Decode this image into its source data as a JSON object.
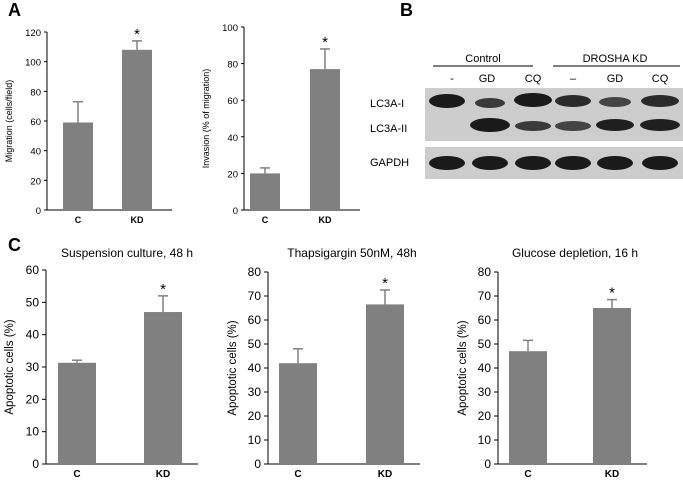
{
  "panels": {
    "a": "A",
    "b": "B",
    "c": "C"
  },
  "chart_data": [
    {
      "type": "bar",
      "categories": [
        "C",
        "KD"
      ],
      "values": [
        59,
        108
      ],
      "errors": [
        14,
        6
      ],
      "significance": [
        "",
        "*"
      ],
      "title": "",
      "xlabel": "",
      "ylabel": "Migration (cells/field)",
      "ylim": [
        0,
        120
      ],
      "yticks": [
        0,
        20,
        40,
        60,
        80,
        100,
        120
      ]
    },
    {
      "type": "bar",
      "categories": [
        "C",
        "KD"
      ],
      "values": [
        20,
        77
      ],
      "errors": [
        3,
        11
      ],
      "significance": [
        "",
        "*"
      ],
      "title": "",
      "xlabel": "",
      "ylabel": "Invasion (% of migration)",
      "ylim": [
        0,
        100
      ],
      "yticks": [
        0,
        20,
        40,
        60,
        80,
        100
      ]
    },
    {
      "type": "bar",
      "categories": [
        "C",
        "KD"
      ],
      "values": [
        31.3,
        47
      ],
      "errors": [
        0.8,
        5
      ],
      "significance": [
        "",
        "*"
      ],
      "title": "Suspension culture, 48 h",
      "xlabel": "",
      "ylabel": "Apoptotic cells (%)",
      "ylim": [
        0,
        60
      ],
      "yticks": [
        0,
        10,
        20,
        30,
        40,
        50,
        60
      ]
    },
    {
      "type": "bar",
      "categories": [
        "C",
        "KD"
      ],
      "values": [
        42,
        66.5
      ],
      "errors": [
        6,
        6
      ],
      "significance": [
        "",
        "*"
      ],
      "title": "Thapsigargin 50nM, 48h",
      "xlabel": "",
      "ylabel": "Apoptotic cells (%)",
      "ylim": [
        0,
        80
      ],
      "yticks": [
        0,
        10,
        20,
        30,
        40,
        50,
        60,
        70,
        80
      ]
    },
    {
      "type": "bar",
      "categories": [
        "C",
        "KD"
      ],
      "values": [
        47,
        65
      ],
      "errors": [
        4.5,
        3.5
      ],
      "significance": [
        "",
        "*"
      ],
      "title": "Glucose depletion, 16 h",
      "xlabel": "",
      "ylabel": "Apoptotic cells (%)",
      "ylim": [
        0,
        80
      ],
      "yticks": [
        0,
        10,
        20,
        30,
        40,
        50,
        60,
        70,
        80
      ]
    }
  ],
  "blot": {
    "groups": [
      "Control",
      "DROSHA  KD"
    ],
    "lanes": [
      "-",
      "GD",
      "CQ",
      "–",
      "GD",
      "CQ"
    ],
    "rows": [
      "LC3A-I",
      "LC3A-II",
      "GAPDH"
    ],
    "colors": {
      "background": "#c9c9c9",
      "band": "#1a1a1a"
    }
  },
  "colors": {
    "bar": "#808080",
    "axis": "#000000"
  }
}
